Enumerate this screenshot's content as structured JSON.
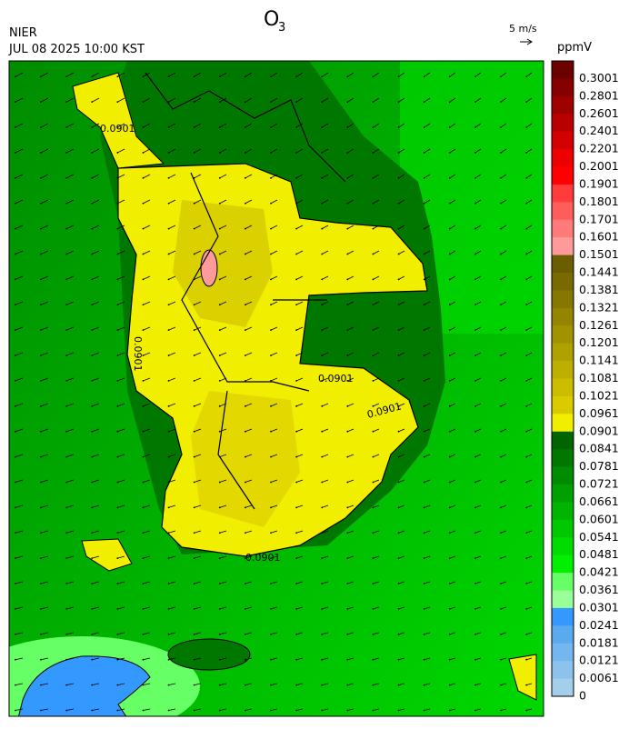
{
  "header": {
    "title": "O",
    "title_subscript": "3",
    "agency": "NIER",
    "datetime": "JUL 08 2025 10:00 KST",
    "vector_scale": "5 m/s"
  },
  "colorbar": {
    "unit": "ppmV",
    "ticks": [
      0.3001,
      0.2801,
      0.2601,
      0.2401,
      0.2201,
      0.2001,
      0.1901,
      0.1801,
      0.1701,
      0.1601,
      0.1501,
      0.1441,
      0.1381,
      0.1321,
      0.1261,
      0.1201,
      0.1141,
      0.1081,
      0.1021,
      0.0961,
      0.0901,
      0.0841,
      0.0781,
      0.0721,
      0.0661,
      0.0601,
      0.0541,
      0.0481,
      0.0421,
      0.0361,
      0.0301,
      0.0241,
      0.0181,
      0.0121,
      0.0061,
      0
    ],
    "colors": [
      "#6b0000",
      "#850000",
      "#9e0000",
      "#b80000",
      "#d20000",
      "#ec0000",
      "#ff0000",
      "#ff3b3b",
      "#ff5c5c",
      "#ff7b7b",
      "#ff9a9a",
      "#6b5e00",
      "#786a00",
      "#857700",
      "#938500",
      "#a19300",
      "#afa100",
      "#bdaf00",
      "#cbbd00",
      "#d9cb00",
      "#f2ee00",
      "#006400",
      "#007800",
      "#008c00",
      "#00a000",
      "#00b400",
      "#00c800",
      "#00dc00",
      "#00f000",
      "#66ff66",
      "#99ff99",
      "#3399ff",
      "#5aaaf0",
      "#74b6ee",
      "#8cc3ec",
      "#a3cfea"
    ]
  },
  "contour_labels": [
    "0.0901",
    "0.0901",
    "0.0901",
    "0.0901",
    "0.0901"
  ]
}
